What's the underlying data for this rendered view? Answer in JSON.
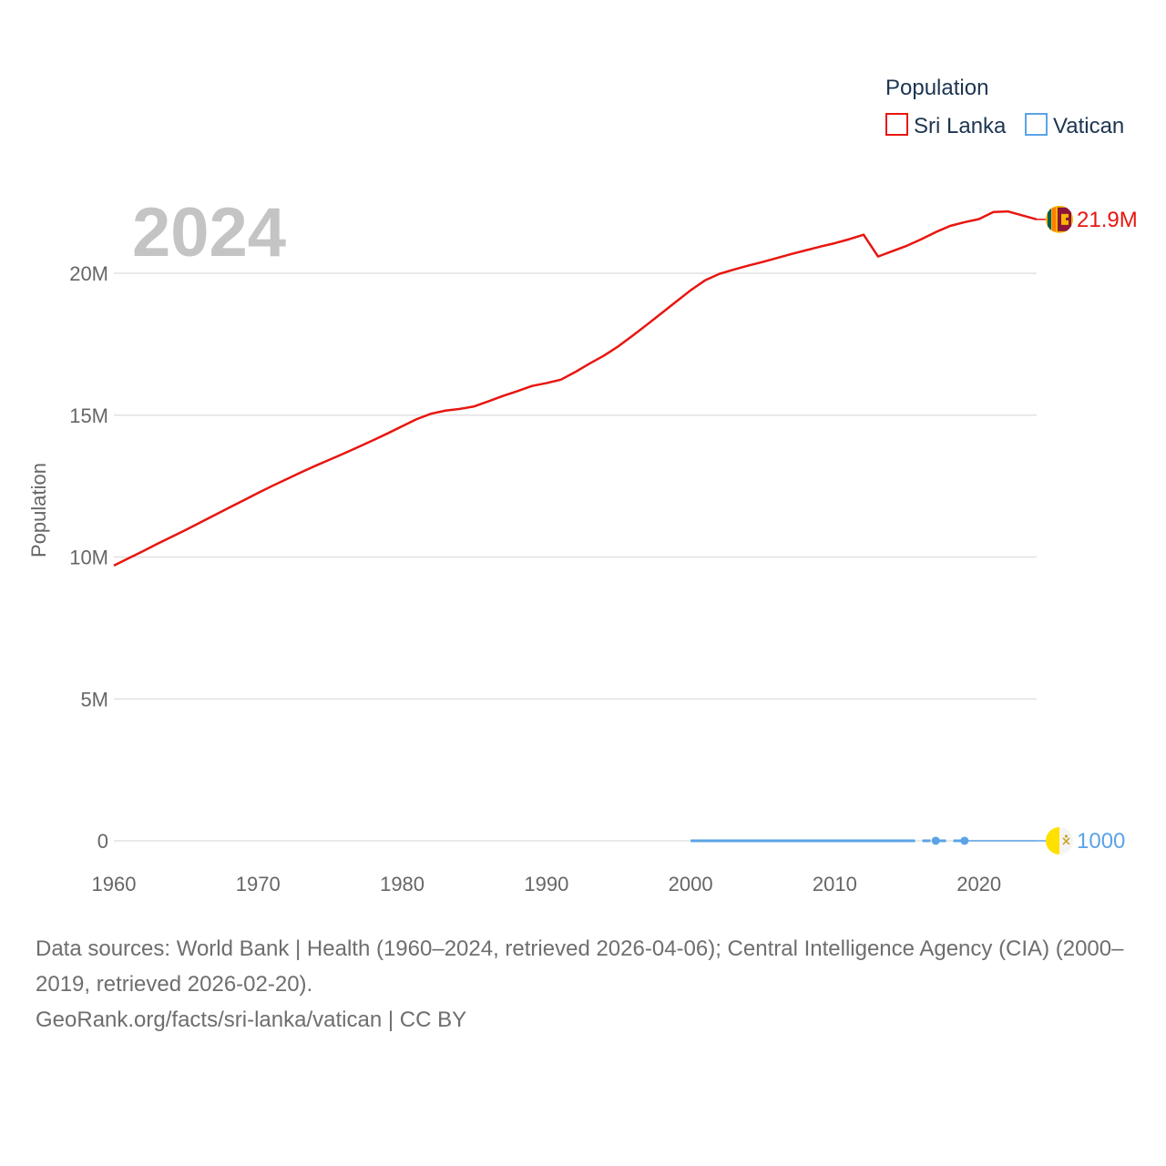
{
  "year_label": "2024",
  "legend": {
    "title": "Population",
    "entries": [
      {
        "name": "Sri Lanka",
        "color": "#e8150f"
      },
      {
        "name": "Vatican",
        "color": "#5ba3e6"
      }
    ]
  },
  "footer": {
    "sources": "Data sources: World Bank | Health (1960–2024, retrieved 2026-04-06); Central Intelligence Agency (CIA) (2000–2019, retrieved 2026-02-20).",
    "credit": "GeoRank.org/facts/sri-lanka/vatican | CC BY"
  },
  "chart_data": {
    "type": "line",
    "title": "",
    "xlabel": "",
    "ylabel": "Population",
    "xlim": [
      1960,
      2024
    ],
    "ylim": [
      0,
      20000000
    ],
    "x_ticks": [
      {
        "value": 1960,
        "label": "1960"
      },
      {
        "value": 1970,
        "label": "1970"
      },
      {
        "value": 1980,
        "label": "1980"
      },
      {
        "value": 1990,
        "label": "1990"
      },
      {
        "value": 2000,
        "label": "2000"
      },
      {
        "value": 2010,
        "label": "2010"
      },
      {
        "value": 2020,
        "label": "2020"
      }
    ],
    "y_ticks": [
      {
        "value": 0,
        "label": "0"
      },
      {
        "value": 5000000,
        "label": "5M"
      },
      {
        "value": 10000000,
        "label": "10M"
      },
      {
        "value": 15000000,
        "label": "15M"
      },
      {
        "value": 20000000,
        "label": "20M"
      }
    ],
    "grid": true,
    "series": [
      {
        "name": "Sri Lanka",
        "color": "#e8150f",
        "end_label": "21.9M",
        "flag": "sri-lanka-flag",
        "x": [
          1960,
          1961,
          1962,
          1963,
          1964,
          1965,
          1966,
          1967,
          1968,
          1969,
          1970,
          1971,
          1972,
          1973,
          1974,
          1975,
          1976,
          1977,
          1978,
          1979,
          1980,
          1981,
          1982,
          1983,
          1984,
          1985,
          1986,
          1987,
          1988,
          1989,
          1990,
          1991,
          1992,
          1993,
          1994,
          1995,
          1996,
          1997,
          1998,
          1999,
          2000,
          2001,
          2002,
          2003,
          2004,
          2005,
          2006,
          2007,
          2008,
          2009,
          2010,
          2011,
          2012,
          2013,
          2014,
          2015,
          2016,
          2017,
          2018,
          2019,
          2020,
          2021,
          2022,
          2023,
          2024
        ],
        "values": [
          9700000,
          9950000,
          10200000,
          10460000,
          10710000,
          10960000,
          11220000,
          11480000,
          11740000,
          12000000,
          12260000,
          12510000,
          12750000,
          12990000,
          13220000,
          13440000,
          13660000,
          13890000,
          14120000,
          14360000,
          14610000,
          14860000,
          15050000,
          15160000,
          15220000,
          15310000,
          15490000,
          15680000,
          15850000,
          16030000,
          16130000,
          16250000,
          16520000,
          16820000,
          17100000,
          17430000,
          17810000,
          18200000,
          18600000,
          19000000,
          19400000,
          19750000,
          19980000,
          20130000,
          20270000,
          20400000,
          20540000,
          20680000,
          20810000,
          20940000,
          21060000,
          21200000,
          21360000,
          20590000,
          20780000,
          20970000,
          21200000,
          21450000,
          21670000,
          21800000,
          21910000,
          22160000,
          22180000,
          22040000,
          21900000
        ]
      },
      {
        "name": "Vatican",
        "color": "#5ba3e6",
        "end_label": "1000",
        "flag": "vatican-flag",
        "x": [
          2000,
          2001,
          2002,
          2003,
          2004,
          2005,
          2006,
          2007,
          2008,
          2009,
          2010,
          2011,
          2012,
          2013,
          2014,
          2015,
          2017,
          2019
        ],
        "values": [
          880,
          890,
          900,
          920,
          920,
          920,
          930,
          930,
          930,
          930,
          930,
          930,
          830,
          840,
          840,
          1000,
          1000,
          1000
        ],
        "markers": [
          2017,
          2019
        ],
        "dashed_between": [
          2015,
          2019
        ],
        "extends_to": 2024
      }
    ]
  }
}
